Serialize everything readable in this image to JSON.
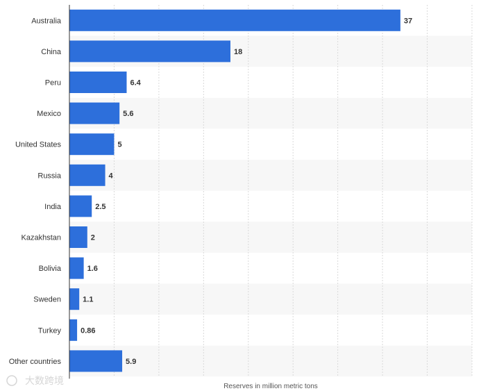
{
  "chart_data": {
    "type": "bar",
    "orientation": "horizontal",
    "categories": [
      "Australia",
      "China",
      "Peru",
      "Mexico",
      "United States",
      "Russia",
      "India",
      "Kazakhstan",
      "Bolivia",
      "Sweden",
      "Turkey",
      "Other countries"
    ],
    "values": [
      37,
      18,
      6.4,
      5.6,
      5,
      4,
      2.5,
      2,
      1.6,
      1.1,
      0.86,
      5.9
    ],
    "value_labels": [
      "37",
      "18",
      "6.4",
      "5.6",
      "5",
      "4",
      "2.5",
      "2",
      "1.6",
      "1.1",
      "0.86",
      "5.9"
    ],
    "xlabel": "Reserves in million metric tons",
    "xlim": [
      0,
      45
    ],
    "grid": true,
    "colors": {
      "bar": "#2d6fdb",
      "stripe": "#f7f7f7",
      "grid": "#d9d9d9",
      "axis": "#333333"
    }
  },
  "watermark": {
    "text": "大数跨境"
  }
}
